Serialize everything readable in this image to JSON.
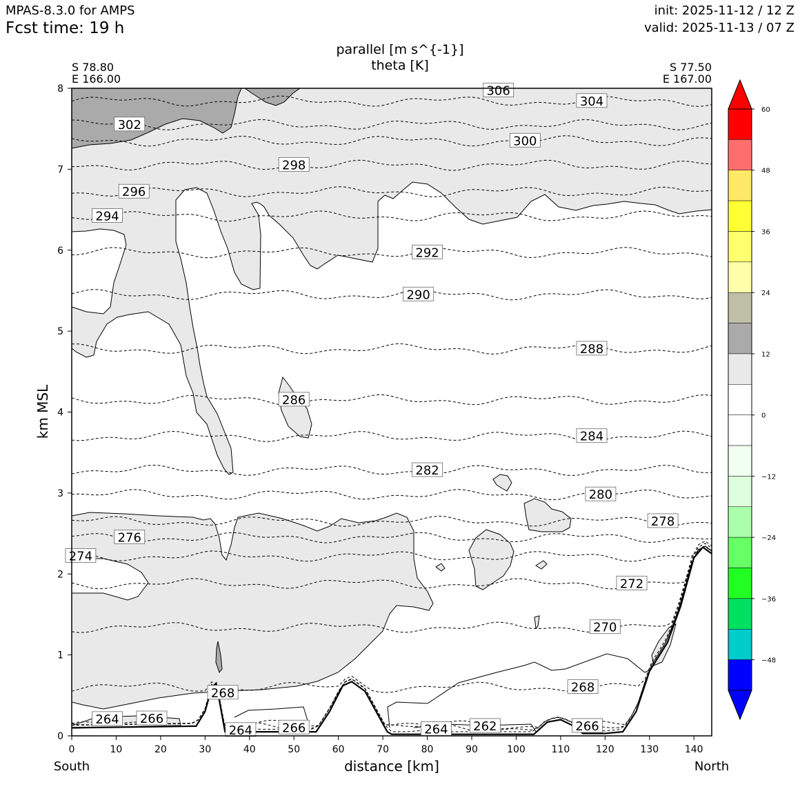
{
  "header": {
    "model": "MPAS-8.3.0 for AMPS",
    "forecast_time": "Fcst time:   19 h",
    "init": "init: 2025-11-12 / 12 Z",
    "valid": "valid: 2025-11-13 / 07 Z"
  },
  "chart_data": {
    "type": "contour",
    "title": "parallel [m s^{-1}]",
    "subtitle": "theta [K]",
    "xlabel": "distance [km]",
    "ylabel": "km MSL",
    "xlim": [
      0,
      144
    ],
    "ylim": [
      0,
      8
    ],
    "x_ticks": [
      0,
      10,
      20,
      30,
      40,
      50,
      60,
      70,
      80,
      90,
      100,
      110,
      120,
      130,
      140
    ],
    "y_ticks": [
      0,
      1,
      2,
      3,
      4,
      5,
      6,
      7,
      8
    ],
    "left_end": {
      "lat": "S 78.80",
      "lon": "E 166.00",
      "direction": "South"
    },
    "right_end": {
      "lat": "S 77.50",
      "lon": "E 167.00",
      "direction": "North"
    },
    "colorbar": {
      "ticks": [
        "60",
        "48",
        "36",
        "24",
        "12",
        "0",
        "−12",
        "−24",
        "−36",
        "−48"
      ],
      "bands": [
        {
          "from": 54,
          "to": 60,
          "color": "#ff0000"
        },
        {
          "from": 48,
          "to": 54,
          "color": "#ff6e6e"
        },
        {
          "from": 42,
          "to": 48,
          "color": "#ffe966"
        },
        {
          "from": 36,
          "to": 42,
          "color": "#ffff33"
        },
        {
          "from": 30,
          "to": 36,
          "color": "#ffff70"
        },
        {
          "from": 24,
          "to": 30,
          "color": "#ffffaa"
        },
        {
          "from": 18,
          "to": 24,
          "color": "#bfbfa8"
        },
        {
          "from": 12,
          "to": 18,
          "color": "#aaaaaa"
        },
        {
          "from": 6,
          "to": 12,
          "color": "#e9e9e9"
        },
        {
          "from": 0,
          "to": 6,
          "color": "#ffffff"
        },
        {
          "from": -6,
          "to": 0,
          "color": "#ffffff"
        },
        {
          "from": -12,
          "to": -6,
          "color": "#f1fff1"
        },
        {
          "from": -18,
          "to": -12,
          "color": "#ddffdd"
        },
        {
          "from": -24,
          "to": -18,
          "color": "#aaffaa"
        },
        {
          "from": -30,
          "to": -24,
          "color": "#66ff66"
        },
        {
          "from": -36,
          "to": -30,
          "color": "#22ff22"
        },
        {
          "from": -42,
          "to": -36,
          "color": "#00e060"
        },
        {
          "from": -48,
          "to": -42,
          "color": "#00cccc"
        },
        {
          "from": -54,
          "to": -48,
          "color": "#0000ff"
        }
      ],
      "over_color": "#ff0000",
      "under_color": "#0000ff"
    },
    "theta_contours": [
      {
        "label": "304",
        "height_km": 7.84,
        "label_x_km": 117
      },
      {
        "label": "302",
        "height_km": 7.55,
        "label_x_km": 13
      },
      {
        "label": "300",
        "height_km": 7.35,
        "label_x_km": 102
      },
      {
        "label": "298",
        "height_km": 7.05,
        "label_x_km": 50
      },
      {
        "label": "296",
        "height_km": 6.72,
        "label_x_km": 14
      },
      {
        "label": "294",
        "height_km": 6.42,
        "label_x_km": 8
      },
      {
        "label": "292",
        "height_km": 5.97,
        "label_x_km": 80
      },
      {
        "label": "290",
        "height_km": 5.45,
        "label_x_km": 78
      },
      {
        "label": "288",
        "height_km": 4.78,
        "label_x_km": 117
      },
      {
        "label": "286",
        "height_km": 4.15,
        "label_x_km": 50
      },
      {
        "label": "284",
        "height_km": 3.7,
        "label_x_km": 117
      },
      {
        "label": "282",
        "height_km": 3.28,
        "label_x_km": 80
      },
      {
        "label": "280",
        "height_km": 2.98,
        "label_x_km": 119
      },
      {
        "label": "278",
        "height_km": 2.65,
        "label_x_km": 133
      },
      {
        "label": "276",
        "height_km": 2.45,
        "label_x_km": 13
      },
      {
        "label": "274",
        "height_km": 2.22,
        "label_x_km": 2
      },
      {
        "label": "272",
        "height_km": 1.88,
        "label_x_km": 126
      },
      {
        "label": "270",
        "height_km": 1.34,
        "label_x_km": 120
      },
      {
        "label": "268",
        "height_km": 0.6,
        "label_x_km": 115
      },
      {
        "label": "266",
        "height_km": 0.13,
        "label_x_km": 18
      },
      {
        "label": "264",
        "height_km": 0.1,
        "label_x_km": 8
      },
      {
        "label": "262",
        "height_km": 0.03,
        "label_x_km": 93
      }
    ],
    "extra_labels": [
      {
        "label": "306",
        "x_km": 96,
        "y_km": 7.97
      },
      {
        "label": "268",
        "x_km": 34,
        "y_km": 0.53
      },
      {
        "label": "264",
        "x_km": 38,
        "y_km": 0.07
      },
      {
        "label": "266",
        "x_km": 50,
        "y_km": 0.1
      },
      {
        "label": "264",
        "x_km": 82,
        "y_km": 0.08
      },
      {
        "label": "266",
        "x_km": 116,
        "y_km": 0.12
      }
    ],
    "terrain_km": [
      [
        0,
        0.1
      ],
      [
        28,
        0.12
      ],
      [
        30,
        0.3
      ],
      [
        31.5,
        0.6
      ],
      [
        32.5,
        0.65
      ],
      [
        33.5,
        0.35
      ],
      [
        34.5,
        0.05
      ],
      [
        55,
        0.05
      ],
      [
        58,
        0.3
      ],
      [
        61,
        0.62
      ],
      [
        63,
        0.67
      ],
      [
        66,
        0.55
      ],
      [
        69,
        0.25
      ],
      [
        71,
        0.05
      ],
      [
        72,
        0.02
      ],
      [
        104,
        0.02
      ],
      [
        107,
        0.17
      ],
      [
        110,
        0.2
      ],
      [
        113,
        0.12
      ],
      [
        115,
        0.03
      ],
      [
        120,
        0.03
      ],
      [
        124,
        0.05
      ],
      [
        127,
        0.3
      ],
      [
        130,
        0.8
      ],
      [
        134,
        1.15
      ],
      [
        137,
        1.6
      ],
      [
        140,
        2.2
      ],
      [
        142,
        2.33
      ],
      [
        144,
        2.25
      ]
    ]
  }
}
